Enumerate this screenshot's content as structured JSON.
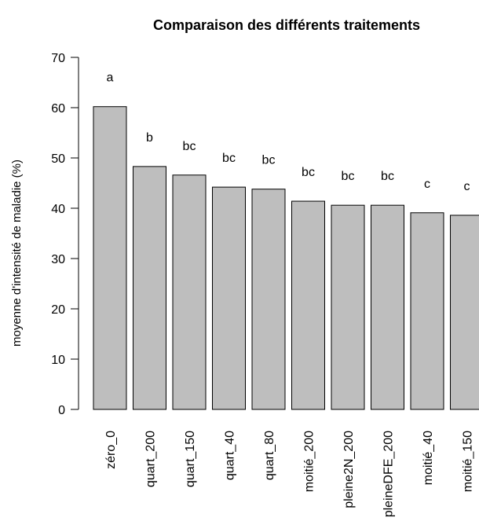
{
  "chart_data": {
    "type": "bar",
    "title": "Comparaison des différents traitements",
    "xlabel": "",
    "ylabel": "moyenne d'intensité de maladie (%)",
    "ylim": [
      0,
      70
    ],
    "yticks": [
      0,
      10,
      20,
      30,
      40,
      50,
      60,
      70
    ],
    "grid": false,
    "bar_color": "#bebebe",
    "categories": [
      "zéro_0",
      "quart_200",
      "quart_150",
      "quart_40",
      "quart_80",
      "moitié_200",
      "pleine2N_200",
      "pleineDFE_200",
      "moitié_40",
      "moitié_150"
    ],
    "values": [
      60.2,
      48.3,
      46.6,
      44.2,
      43.8,
      41.4,
      40.6,
      40.6,
      39.1,
      38.6
    ],
    "group_letters": [
      "a",
      "b",
      "bc",
      "bc",
      "bc",
      "bc",
      "bc",
      "bc",
      "c",
      "c"
    ]
  }
}
